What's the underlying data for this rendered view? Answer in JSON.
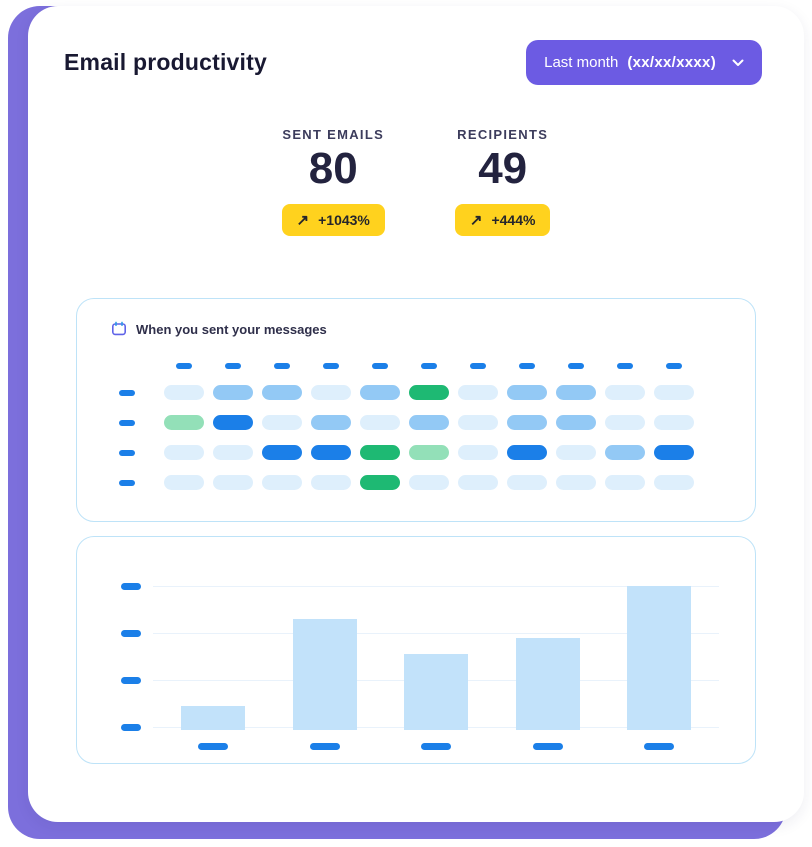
{
  "colors": {
    "backdrop": "#7C6FDC",
    "button": "#6C5BE3",
    "badge": "#FFD21E",
    "badge_text": "#26262B",
    "dash": "#1B7FE8",
    "bar": "#C2E2FA",
    "panel_border": "#BEE3F8",
    "grid_line": "#E9F2FB",
    "title_text": "#191932",
    "stat_text": "#23233F"
  },
  "header": {
    "title": "Email productivity",
    "period": {
      "label": "Last month",
      "value": "(xx/xx/xxxx)"
    }
  },
  "icons": {
    "trend_up": "↗",
    "chevron_down": "chevron-down",
    "calendar": "calendar"
  },
  "stats": [
    {
      "label": "SENT EMAILS",
      "value": "80",
      "delta": "+1043%"
    },
    {
      "label": "RECIPIENTS",
      "value": "49",
      "delta": "+444%"
    }
  ],
  "chart_data": [
    {
      "type": "heatmap",
      "title": "When you sent your messages",
      "rows": 4,
      "columns": 11,
      "axis_labels": "placeholder-dashes",
      "palette": {
        "L": "#DEEFFC",
        "M": "#93C9F5",
        "B": "#1B7FE8",
        "G": "#1EB973",
        "P": "#93E0B8"
      },
      "cells": [
        [
          "L",
          "M",
          "M",
          "L",
          "M",
          "G",
          "L",
          "M",
          "M",
          "L",
          "L"
        ],
        [
          "P",
          "B",
          "L",
          "M",
          "L",
          "M",
          "L",
          "M",
          "M",
          "L",
          "L"
        ],
        [
          "L",
          "L",
          "B",
          "B",
          "G",
          "P",
          "L",
          "B",
          "L",
          "M",
          "B"
        ],
        [
          "L",
          "L",
          "L",
          "L",
          "G",
          "L",
          "L",
          "L",
          "L",
          "L",
          "L"
        ]
      ]
    },
    {
      "type": "bar",
      "categories": [
        "",
        "",
        "",
        "",
        ""
      ],
      "values_pct": [
        17,
        77,
        53,
        64,
        100
      ],
      "ylim": [
        0,
        100
      ],
      "gridlines": 4,
      "axis_labels": "placeholder-dashes",
      "bar_color": "#C2E2FA"
    }
  ]
}
